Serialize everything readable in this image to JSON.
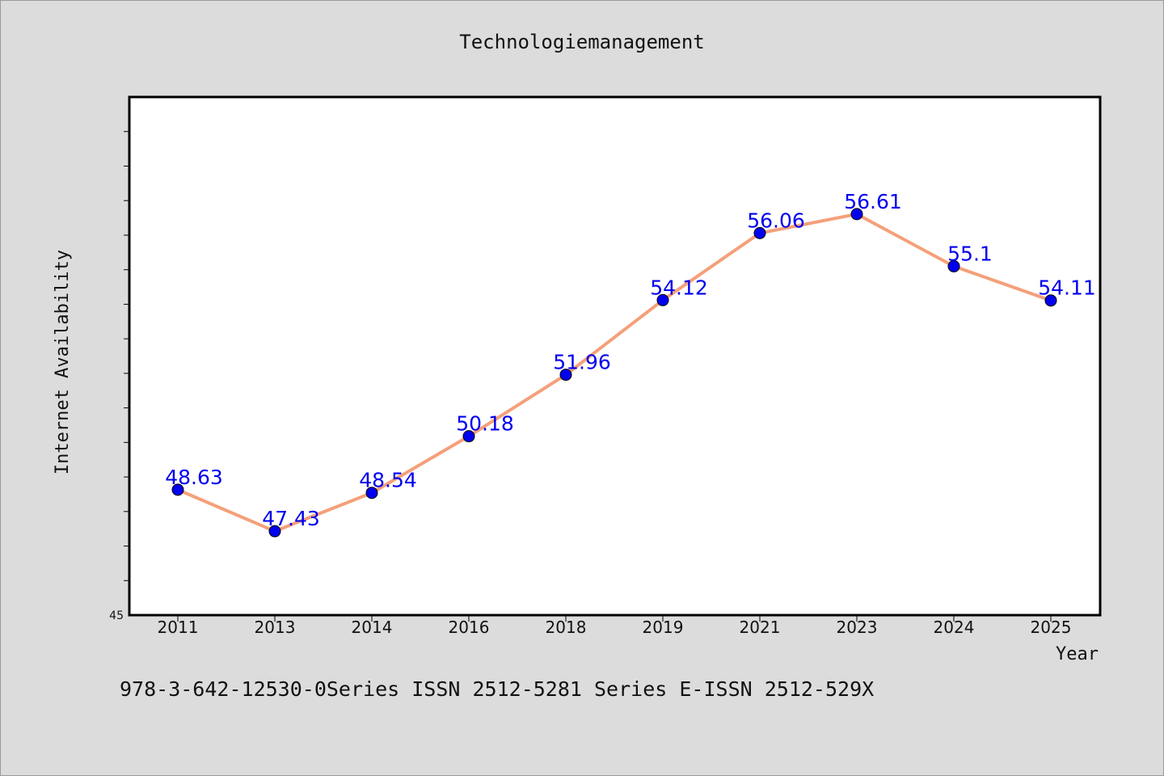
{
  "chart_data": {
    "type": "line",
    "title": "Technologiemanagement",
    "xlabel": "Year",
    "ylabel": "Internet Availability",
    "categories": [
      "2011",
      "2013",
      "2014",
      "2016",
      "2018",
      "2019",
      "2021",
      "2023",
      "2024",
      "2025"
    ],
    "series": [
      {
        "values": [
          48.63,
          47.43,
          48.54,
          50.18,
          51.96,
          54.12,
          56.06,
          56.61,
          55.1,
          54.11
        ],
        "labels": [
          "48.63",
          "47.43",
          "48.54",
          "50.18",
          "51.96",
          "54.12",
          "56.06",
          "56.61",
          "55.1",
          "54.11"
        ]
      }
    ],
    "ylim": [
      45,
      60
    ],
    "y_tick_label": "45",
    "grid": false,
    "legend": "none",
    "colors": {
      "line": "#f4a07a",
      "marker": "#0000ee",
      "data_label": "#0000ee",
      "plot_background": "#ffffff",
      "page_background": "#dcdcdc"
    }
  },
  "footer": "978-3-642-12530-0Series ISSN 2512-5281 Series E-ISSN 2512-529X"
}
